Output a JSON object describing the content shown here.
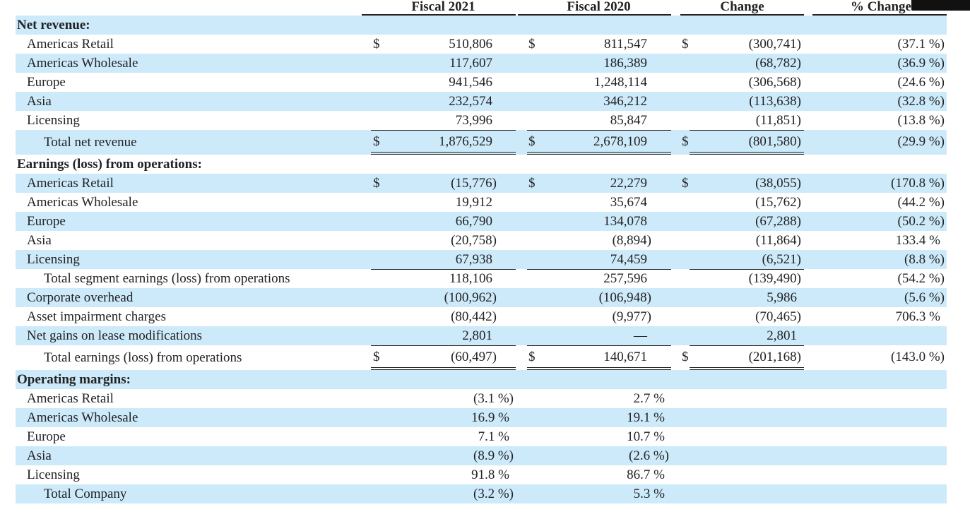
{
  "header": {
    "col1": "Fiscal 2021",
    "col2": "Fiscal 2020",
    "col3": "Change",
    "col4": "% Change"
  },
  "colors": {
    "row_highlight": "#cdeafb",
    "text": "#222222"
  },
  "rows": [
    {
      "label": "Net revenue:",
      "style": "section"
    },
    {
      "label": "Americas Retail",
      "dollar": true,
      "v": [
        "510,806",
        "811,547",
        "(300,741)",
        "(37.1 %)"
      ]
    },
    {
      "label": "Americas Wholesale",
      "v": [
        "117,607",
        "186,389",
        "(68,782)",
        "(36.9 %)"
      ]
    },
    {
      "label": "Europe",
      "v": [
        "941,546",
        "1,248,114",
        "(306,568)",
        "(24.6 %)"
      ]
    },
    {
      "label": "Asia",
      "v": [
        "232,574",
        "346,212",
        "(113,638)",
        "(32.8 %)"
      ]
    },
    {
      "label": "Licensing",
      "v": [
        "73,996",
        "85,847",
        "(11,851)",
        "(13.8 %)"
      ]
    },
    {
      "label": "Total net revenue",
      "style": "total",
      "dollar": true,
      "v": [
        "1,876,529",
        "2,678,109",
        "(801,580)",
        "(29.9 %)"
      ]
    },
    {
      "label": "Earnings (loss) from operations:",
      "style": "section"
    },
    {
      "label": "Americas Retail",
      "dollar": true,
      "v": [
        "(15,776)",
        "22,279",
        "(38,055)",
        "(170.8 %)"
      ]
    },
    {
      "label": "Americas Wholesale",
      "v": [
        "19,912",
        "35,674",
        "(15,762)",
        "(44.2 %)"
      ]
    },
    {
      "label": "Europe",
      "v": [
        "66,790",
        "134,078",
        "(67,288)",
        "(50.2 %)"
      ]
    },
    {
      "label": "Asia",
      "v": [
        "(20,758)",
        "(8,894)",
        "(11,864)",
        "133.4 %"
      ]
    },
    {
      "label": "Licensing",
      "v": [
        "67,938",
        "74,459",
        "(6,521)",
        "(8.8 %)"
      ]
    },
    {
      "label": "Total segment earnings (loss) from operations",
      "style": "subtotal",
      "v": [
        "118,106",
        "257,596",
        "(139,490)",
        "(54.2 %)"
      ]
    },
    {
      "label": "Corporate overhead",
      "v": [
        "(100,962)",
        "(106,948)",
        "5,986",
        "(5.6 %)"
      ]
    },
    {
      "label": "Asset impairment charges",
      "v": [
        "(80,442)",
        "(9,977)",
        "(70,465)",
        "706.3 %"
      ]
    },
    {
      "label": "Net gains on lease modifications",
      "v": [
        "2,801",
        "—",
        "2,801",
        ""
      ]
    },
    {
      "label": "Total earnings (loss) from operations",
      "style": "total",
      "dollar": true,
      "v": [
        "(60,497)",
        "140,671",
        "(201,168)",
        "(143.0 %)"
      ]
    },
    {
      "label": "Operating margins:",
      "style": "section"
    },
    {
      "label": "Americas Retail",
      "margin": true,
      "v": [
        "(3.1 %)",
        "2.7 %"
      ]
    },
    {
      "label": "Americas Wholesale",
      "margin": true,
      "v": [
        "16.9 %",
        "19.1 %"
      ]
    },
    {
      "label": "Europe",
      "margin": true,
      "v": [
        "7.1 %",
        "10.7 %"
      ]
    },
    {
      "label": "Asia",
      "margin": true,
      "v": [
        "(8.9 %)",
        "(2.6 %)"
      ]
    },
    {
      "label": "Licensing",
      "margin": true,
      "v": [
        "91.8 %",
        "86.7 %"
      ]
    },
    {
      "label": "Total Company",
      "style": "subtotal",
      "margin": true,
      "v": [
        "(3.2 %)",
        "5.3 %"
      ]
    }
  ],
  "dollar_sign": "$"
}
